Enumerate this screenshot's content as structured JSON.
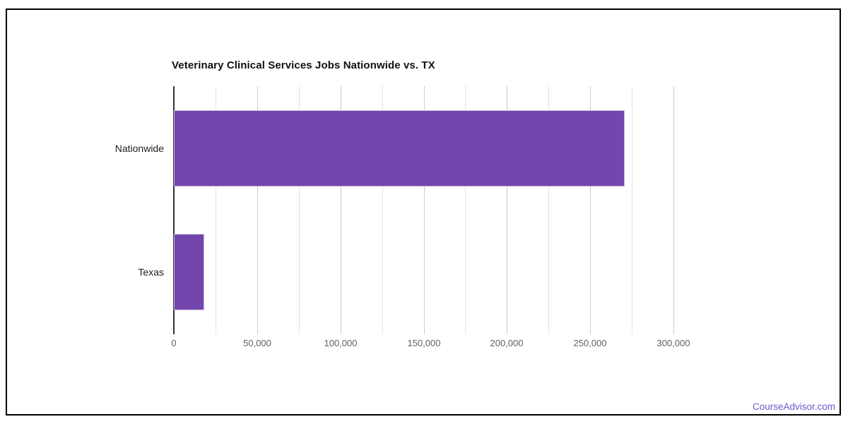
{
  "frame": {
    "border_color": "#000000",
    "background": "#ffffff"
  },
  "chart_data": {
    "type": "bar",
    "orientation": "horizontal",
    "title": "Veterinary Clinical Services Jobs Nationwide vs. TX",
    "categories": [
      "Nationwide",
      "Texas"
    ],
    "values": [
      270600,
      18100
    ],
    "xlabel": "",
    "ylabel": "",
    "xlim": [
      0,
      325000
    ],
    "x_ticks": [
      {
        "value": 0,
        "label": "0"
      },
      {
        "value": 50000,
        "label": "50,000"
      },
      {
        "value": 100000,
        "label": "100,000"
      },
      {
        "value": 150000,
        "label": "150,000"
      },
      {
        "value": 200000,
        "label": "200,000"
      },
      {
        "value": 250000,
        "label": "250,000"
      },
      {
        "value": 300000,
        "label": "300,000"
      }
    ],
    "minor_grid_interval": 25000,
    "grid": true,
    "legend": "none",
    "colors": {
      "bar": "#7246ad",
      "bar_edge": "#c9b7e5",
      "zero_axis": "#333333",
      "major_gridline": "#cccccc",
      "minor_gridline": "#e3e3e3",
      "title_text": "#111111",
      "tick_text": "#616161",
      "category_text": "#222222"
    }
  },
  "footer": {
    "credit_link": "CourseAdvisor.com",
    "credit_color": "#6a5acd"
  }
}
